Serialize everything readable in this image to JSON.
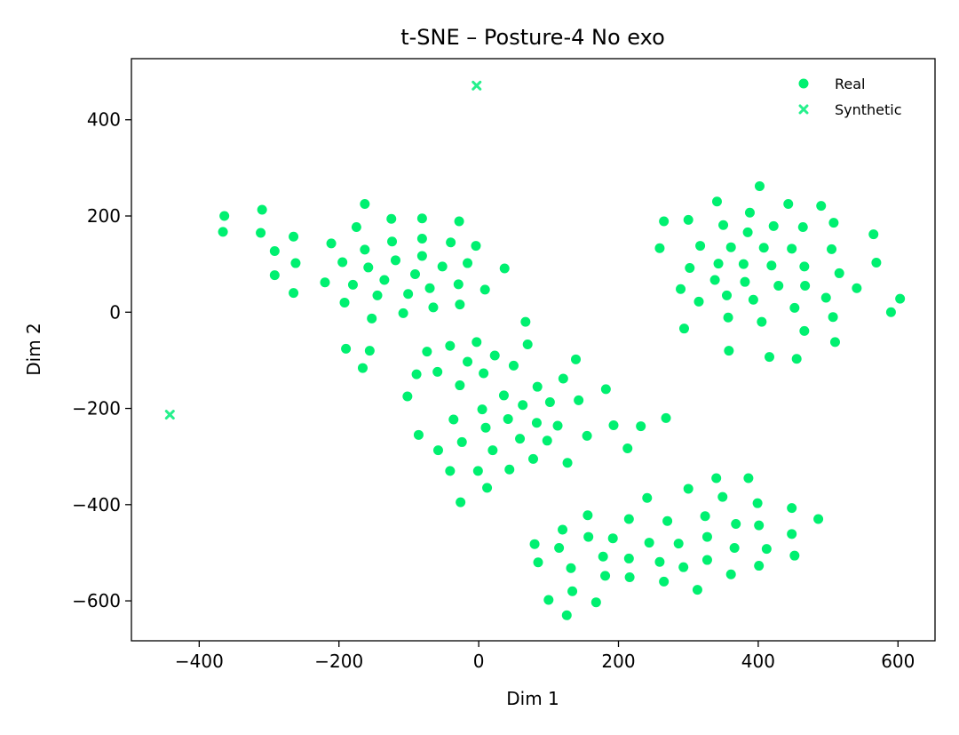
{
  "chart_data": {
    "type": "scatter",
    "title": "t-SNE – Posture-4 No exo",
    "xlabel": "Dim 1",
    "ylabel": "Dim 2",
    "xlim": [
      -497,
      653
    ],
    "ylim": [
      -683,
      527
    ],
    "x_ticks": [
      -400,
      -200,
      0,
      200,
      400,
      600
    ],
    "y_ticks": [
      -600,
      -400,
      -200,
      0,
      200,
      400
    ],
    "x_tick_labels": [
      "−400",
      "−200",
      "0",
      "200",
      "400",
      "600"
    ],
    "y_tick_labels": [
      "−600",
      "−400",
      "−200",
      "0",
      "200",
      "400"
    ],
    "grid": false,
    "legend_position": "top-right",
    "series": [
      {
        "name": "Real",
        "marker": "circle",
        "color": "#00f070",
        "points": [
          [
            -364,
            200
          ],
          [
            -366,
            167
          ],
          [
            -310,
            213
          ],
          [
            -312,
            165
          ],
          [
            -292,
            127
          ],
          [
            -292,
            77
          ],
          [
            -265,
            157
          ],
          [
            -262,
            102
          ],
          [
            -265,
            40
          ],
          [
            -220,
            62
          ],
          [
            -211,
            143
          ],
          [
            -195,
            104
          ],
          [
            -192,
            20
          ],
          [
            -180,
            57
          ],
          [
            -175,
            177
          ],
          [
            -163,
            225
          ],
          [
            -163,
            130
          ],
          [
            -158,
            93
          ],
          [
            -153,
            -13
          ],
          [
            -145,
            35
          ],
          [
            -135,
            67
          ],
          [
            -125,
            194
          ],
          [
            -124,
            147
          ],
          [
            -119,
            108
          ],
          [
            -108,
            -2
          ],
          [
            -101,
            38
          ],
          [
            -91,
            79
          ],
          [
            -81,
            195
          ],
          [
            -81,
            153
          ],
          [
            -81,
            117
          ],
          [
            -70,
            50
          ],
          [
            -65,
            10
          ],
          [
            -52,
            95
          ],
          [
            -40,
            145
          ],
          [
            -28,
            189
          ],
          [
            -29,
            58
          ],
          [
            -27,
            16
          ],
          [
            -16,
            102
          ],
          [
            -4,
            138
          ],
          [
            9,
            47
          ],
          [
            37,
            91
          ],
          [
            -190,
            -76
          ],
          [
            -166,
            -116
          ],
          [
            -156,
            -80
          ],
          [
            -102,
            -175
          ],
          [
            -89,
            -129
          ],
          [
            -86,
            -255
          ],
          [
            -74,
            -82
          ],
          [
            -59,
            -124
          ],
          [
            -58,
            -287
          ],
          [
            -41,
            -70
          ],
          [
            -41,
            -330
          ],
          [
            -36,
            -223
          ],
          [
            -27,
            -152
          ],
          [
            -26,
            -395
          ],
          [
            -24,
            -270
          ],
          [
            -16,
            -103
          ],
          [
            -3,
            -62
          ],
          [
            -1,
            -330
          ],
          [
            5,
            -202
          ],
          [
            7,
            -127
          ],
          [
            10,
            -240
          ],
          [
            12,
            -365
          ],
          [
            23,
            -90
          ],
          [
            20,
            -287
          ],
          [
            36,
            -173
          ],
          [
            42,
            -222
          ],
          [
            44,
            -327
          ],
          [
            50,
            -111
          ],
          [
            59,
            -263
          ],
          [
            63,
            -193
          ],
          [
            67,
            -20
          ],
          [
            70,
            -67
          ],
          [
            78,
            -305
          ],
          [
            83,
            -230
          ],
          [
            84,
            -155
          ],
          [
            98,
            -267
          ],
          [
            102,
            -187
          ],
          [
            113,
            -236
          ],
          [
            121,
            -138
          ],
          [
            127,
            -313
          ],
          [
            139,
            -98
          ],
          [
            143,
            -183
          ],
          [
            155,
            -257
          ],
          [
            182,
            -160
          ],
          [
            193,
            -235
          ],
          [
            213,
            -283
          ],
          [
            232,
            -237
          ],
          [
            268,
            -220
          ],
          [
            80,
            -482
          ],
          [
            85,
            -520
          ],
          [
            100,
            -598
          ],
          [
            115,
            -490
          ],
          [
            120,
            -452
          ],
          [
            126,
            -630
          ],
          [
            132,
            -532
          ],
          [
            134,
            -580
          ],
          [
            156,
            -422
          ],
          [
            157,
            -467
          ],
          [
            168,
            -603
          ],
          [
            178,
            -508
          ],
          [
            181,
            -548
          ],
          [
            192,
            -470
          ],
          [
            215,
            -430
          ],
          [
            215,
            -512
          ],
          [
            216,
            -551
          ],
          [
            241,
            -386
          ],
          [
            244,
            -479
          ],
          [
            259,
            -519
          ],
          [
            265,
            -560
          ],
          [
            270,
            -434
          ],
          [
            286,
            -481
          ],
          [
            293,
            -530
          ],
          [
            300,
            -367
          ],
          [
            313,
            -577
          ],
          [
            324,
            -424
          ],
          [
            327,
            -467
          ],
          [
            327,
            -515
          ],
          [
            340,
            -345
          ],
          [
            349,
            -384
          ],
          [
            361,
            -545
          ],
          [
            366,
            -490
          ],
          [
            368,
            -440
          ],
          [
            386,
            -345
          ],
          [
            399,
            -397
          ],
          [
            401,
            -443
          ],
          [
            401,
            -527
          ],
          [
            412,
            -492
          ],
          [
            448,
            -407
          ],
          [
            448,
            -461
          ],
          [
            452,
            -506
          ],
          [
            486,
            -430
          ],
          [
            259,
            133
          ],
          [
            265,
            189
          ],
          [
            289,
            48
          ],
          [
            294,
            -34
          ],
          [
            300,
            192
          ],
          [
            302,
            92
          ],
          [
            315,
            22
          ],
          [
            317,
            138
          ],
          [
            338,
            67
          ],
          [
            341,
            230
          ],
          [
            343,
            101
          ],
          [
            350,
            181
          ],
          [
            355,
            35
          ],
          [
            357,
            -11
          ],
          [
            358,
            -80
          ],
          [
            361,
            135
          ],
          [
            379,
            100
          ],
          [
            381,
            63
          ],
          [
            385,
            166
          ],
          [
            388,
            207
          ],
          [
            393,
            26
          ],
          [
            402,
            262
          ],
          [
            405,
            -20
          ],
          [
            408,
            134
          ],
          [
            416,
            -93
          ],
          [
            419,
            97
          ],
          [
            422,
            179
          ],
          [
            429,
            55
          ],
          [
            443,
            225
          ],
          [
            448,
            132
          ],
          [
            452,
            9
          ],
          [
            455,
            -97
          ],
          [
            464,
            177
          ],
          [
            466,
            -39
          ],
          [
            466,
            95
          ],
          [
            467,
            55
          ],
          [
            490,
            221
          ],
          [
            497,
            30
          ],
          [
            505,
            131
          ],
          [
            507,
            -10
          ],
          [
            508,
            186
          ],
          [
            510,
            -62
          ],
          [
            516,
            81
          ],
          [
            541,
            50
          ],
          [
            565,
            162
          ],
          [
            569,
            103
          ],
          [
            590,
            0
          ],
          [
            603,
            28
          ]
        ]
      },
      {
        "name": "Synthetic",
        "marker": "x",
        "color": "#26f08c",
        "points": [
          [
            -442,
            -213
          ],
          [
            -3,
            471
          ]
        ]
      }
    ]
  }
}
